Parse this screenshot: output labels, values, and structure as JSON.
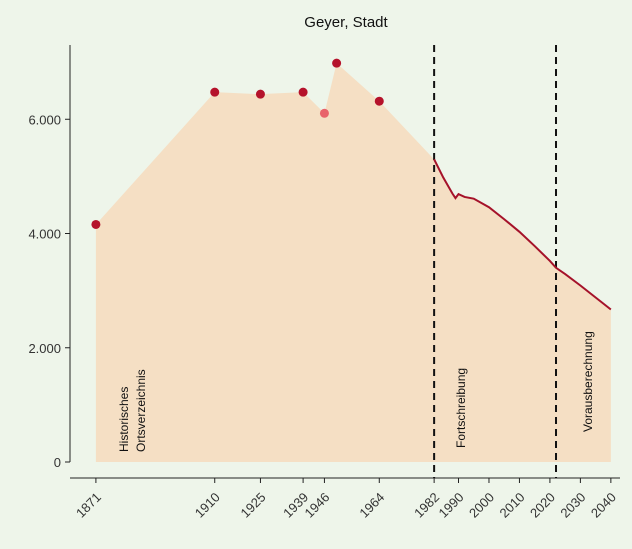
{
  "chart_data": {
    "type": "area-line",
    "title": "Geyer, Stadt",
    "xlim": [
      1862.5,
      2043
    ],
    "ylim": [
      -280,
      7300
    ],
    "xticks": [
      1871,
      1910,
      1925,
      1939,
      1946,
      1964,
      1982,
      1990,
      2000,
      2010,
      2020,
      2030,
      2040
    ],
    "yticks": [
      0,
      {
        "value": 2000,
        "label": "2.000"
      },
      {
        "value": 4000,
        "label": "4.000"
      },
      {
        "value": 6000,
        "label": "6.000"
      }
    ],
    "area_color": "#f5dfc4",
    "series": [
      {
        "kind": "points",
        "color": "#b5122b",
        "x": [
          1871,
          1910,
          1925,
          1939,
          1946,
          1950,
          1964
        ],
        "values": [
          4158,
          6474,
          6439,
          6474,
          6105,
          6982,
          6316
        ],
        "colors": [
          "#b5122b",
          "#b5122b",
          "#b5122b",
          "#b5122b",
          "#e8636b",
          "#b5122b",
          "#b5122b"
        ]
      },
      {
        "kind": "line",
        "color": "#a5122a",
        "x": [
          1982,
          1985,
          1988,
          1989,
          1990,
          1992,
          1995,
          2000,
          2005,
          2010,
          2015,
          2020,
          2022,
          2025,
          2030,
          2035,
          2040
        ],
        "values": [
          5298,
          4980,
          4700,
          4620,
          4690,
          4640,
          4610,
          4460,
          4250,
          4030,
          3780,
          3520,
          3400,
          3290,
          3090,
          2880,
          2670
        ]
      }
    ],
    "vlines": [
      1982,
      2022
    ],
    "annotations": [
      [
        "Historisches",
        "Ortsverzeichnis"
      ],
      [
        "Fortschreibung"
      ],
      [
        "Vorausberechnung"
      ]
    ]
  }
}
